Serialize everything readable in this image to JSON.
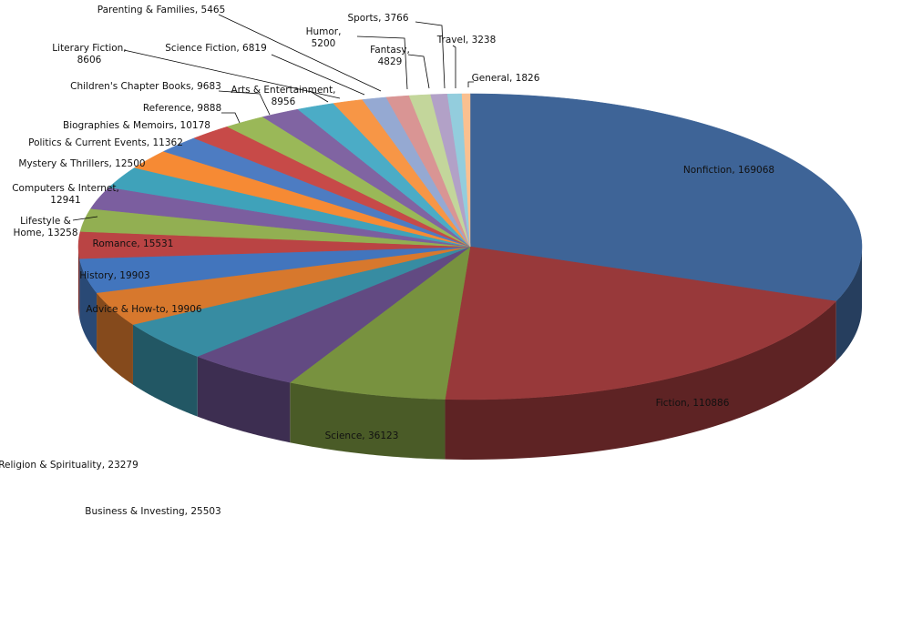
{
  "chart_data": {
    "type": "pie",
    "style": "3d-exploded-tilted",
    "legend": "none",
    "slices": [
      {
        "label": "Nonfiction",
        "value": 169068,
        "color": "#3E6497"
      },
      {
        "label": "Fiction",
        "value": 110886,
        "color": "#98393A"
      },
      {
        "label": "Science",
        "value": 36123,
        "color": "#78923F"
      },
      {
        "label": "Business & Investing",
        "value": 25503,
        "color": "#624A82"
      },
      {
        "label": "Religion & Spirituality",
        "value": 23279,
        "color": "#378CA2"
      },
      {
        "label": "Advice & How-to",
        "value": 19906,
        "color": "#D7782D"
      },
      {
        "label": "History",
        "value": 19903,
        "color": "#4275BD"
      },
      {
        "label": "Romance",
        "value": 15531,
        "color": "#BA4444"
      },
      {
        "label": "Lifestyle & Home",
        "value": 13258,
        "color": "#92AF52"
      },
      {
        "label": "Computers & Internet",
        "value": 12941,
        "color": "#7B5E9F"
      },
      {
        "label": "Mystery & Thrillers",
        "value": 12500,
        "color": "#3FA2BA"
      },
      {
        "label": "Politics & Current Events",
        "value": 11362,
        "color": "#F68A34"
      },
      {
        "label": "Biographies & Memoirs",
        "value": 10178,
        "color": "#4D7CC2"
      },
      {
        "label": "Reference",
        "value": 9888,
        "color": "#C74A48"
      },
      {
        "label": "Children's Chapter Books",
        "value": 9683,
        "color": "#9AB858"
      },
      {
        "label": "Arts & Entertainment",
        "value": 8956,
        "color": "#8064A2"
      },
      {
        "label": "Literary Fiction",
        "value": 8606,
        "color": "#4BACC6"
      },
      {
        "label": "Science Fiction",
        "value": 6819,
        "color": "#F79646"
      },
      {
        "label": "Parenting & Families",
        "value": 5465,
        "color": "#95A9D2"
      },
      {
        "label": "Humor",
        "value": 5200,
        "color": "#D99594"
      },
      {
        "label": "Fantasy",
        "value": 4829,
        "color": "#C3D69B"
      },
      {
        "label": "Sports",
        "value": 3766,
        "color": "#B2A1C7"
      },
      {
        "label": "Travel",
        "value": 3238,
        "color": "#93CDDD"
      },
      {
        "label": "General",
        "value": 1826,
        "color": "#FAC090"
      }
    ]
  }
}
